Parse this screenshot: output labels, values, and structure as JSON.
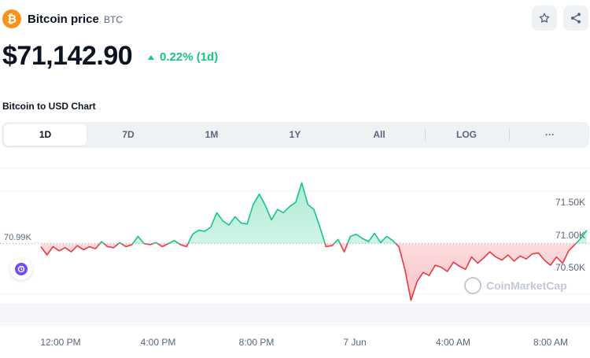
{
  "header": {
    "coin_name": "Bitcoin price",
    "coin_symbol": "BTC",
    "logo_glyph": "₿",
    "logo_icon": "bitcoin-logo-icon",
    "star_icon": "star-icon",
    "share_icon": "share-icon"
  },
  "price": {
    "value": "$71,142.90",
    "change": "0.22% (1d)",
    "direction": "up",
    "up_color": "#16c784",
    "down_color": "#ea3943"
  },
  "chart_title": "Bitcoin to USD Chart",
  "range_tabs": [
    {
      "label": "1D",
      "active": true
    },
    {
      "label": "7D",
      "active": false
    },
    {
      "label": "1M",
      "active": false
    },
    {
      "label": "1Y",
      "active": false
    },
    {
      "label": "All",
      "active": false
    },
    {
      "label": "LOG",
      "active": false
    },
    {
      "label": "···",
      "active": false
    }
  ],
  "reference_label": "70.99K",
  "watermark": "CoinMarketCap",
  "chart_data": {
    "type": "line",
    "title": "",
    "xlabel": "",
    "ylabel": "",
    "baseline": 70990,
    "ylim": [
      70300,
      71750
    ],
    "y_ticks": [
      {
        "value": 71500,
        "label": "71.50K"
      },
      {
        "value": 71000,
        "label": "71.00K"
      },
      {
        "value": 70500,
        "label": "70.50K"
      }
    ],
    "x_ticks": [
      "12:00 PM",
      "4:00 PM",
      "8:00 PM",
      "7 Jun",
      "4:00 AM",
      "8:00 AM"
    ],
    "grid": true,
    "series": [
      {
        "values": [
          70960,
          70880,
          70960,
          70920,
          70950,
          70910,
          70970,
          70930,
          70960,
          70940,
          71010,
          70960,
          70950,
          71000,
          70960,
          70980,
          71060,
          70990,
          70980,
          71000,
          70960,
          70990,
          71020,
          70980,
          70960,
          71080,
          71120,
          71110,
          71150,
          71290,
          71210,
          71170,
          71250,
          71190,
          71180,
          71370,
          71470,
          71360,
          71220,
          71320,
          71290,
          71350,
          71390,
          71580,
          71370,
          71320,
          71150,
          70960,
          70970,
          71030,
          70910,
          71060,
          71080,
          71040,
          71010,
          71090,
          71000,
          71060,
          71020,
          70960,
          70740,
          70440,
          70620,
          70710,
          70680,
          70780,
          70760,
          70720,
          70810,
          70770,
          70740,
          70860,
          70800,
          70850,
          70910,
          70860,
          70830,
          70880,
          70820,
          70870,
          70840,
          70890,
          70900,
          70830,
          70780,
          70860,
          70800,
          70920,
          70980,
          71040,
          71120
        ]
      }
    ]
  }
}
